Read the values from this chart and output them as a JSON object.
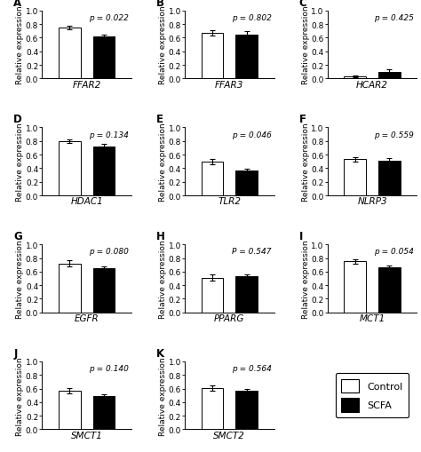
{
  "panels": [
    {
      "label": "A",
      "gene": "FFAR2",
      "pval": "p = 0.022",
      "ctrl_mean": 0.75,
      "ctrl_err": 0.03,
      "scfa_mean": 0.62,
      "scfa_err": 0.025,
      "ylim": [
        0,
        1.0
      ]
    },
    {
      "label": "B",
      "gene": "FFAR3",
      "pval": "p = 0.802",
      "ctrl_mean": 0.67,
      "ctrl_err": 0.038,
      "scfa_mean": 0.65,
      "scfa_err": 0.04,
      "ylim": [
        0,
        1.0
      ]
    },
    {
      "label": "C",
      "gene": "HCAR2",
      "pval": "p = 0.425",
      "ctrl_mean": 0.03,
      "ctrl_err": 0.018,
      "scfa_mean": 0.1,
      "scfa_err": 0.038,
      "ylim": [
        0,
        1.0
      ]
    },
    {
      "label": "D",
      "gene": "HDAC1",
      "pval": "p = 0.134",
      "ctrl_mean": 0.8,
      "ctrl_err": 0.028,
      "scfa_mean": 0.72,
      "scfa_err": 0.04,
      "ylim": [
        0,
        1.0
      ]
    },
    {
      "label": "E",
      "gene": "TLR2",
      "pval": "p = 0.046",
      "ctrl_mean": 0.5,
      "ctrl_err": 0.042,
      "scfa_mean": 0.36,
      "scfa_err": 0.028,
      "ylim": [
        0,
        1.0
      ]
    },
    {
      "label": "F",
      "gene": "NLRP3",
      "pval": "p = 0.559",
      "ctrl_mean": 0.53,
      "ctrl_err": 0.03,
      "scfa_mean": 0.51,
      "scfa_err": 0.038,
      "ylim": [
        0,
        1.0
      ]
    },
    {
      "label": "G",
      "gene": "EGFR",
      "pval": "p = 0.080",
      "ctrl_mean": 0.72,
      "ctrl_err": 0.042,
      "scfa_mean": 0.65,
      "scfa_err": 0.028,
      "ylim": [
        0,
        1.0
      ]
    },
    {
      "label": "H",
      "gene": "PPARG",
      "pval": "P = 0.547",
      "ctrl_mean": 0.51,
      "ctrl_err": 0.048,
      "scfa_mean": 0.53,
      "scfa_err": 0.03,
      "ylim": [
        0,
        1.0
      ]
    },
    {
      "label": "I",
      "gene": "MCT1",
      "pval": "p = 0.054",
      "ctrl_mean": 0.75,
      "ctrl_err": 0.03,
      "scfa_mean": 0.66,
      "scfa_err": 0.025,
      "ylim": [
        0,
        1.0
      ]
    },
    {
      "label": "J",
      "gene": "SMCT1",
      "pval": "p = 0.140",
      "ctrl_mean": 0.57,
      "ctrl_err": 0.038,
      "scfa_mean": 0.49,
      "scfa_err": 0.022,
      "ylim": [
        0,
        1.0
      ]
    },
    {
      "label": "K",
      "gene": "SMCT2",
      "pval": "p = 0.564",
      "ctrl_mean": 0.61,
      "ctrl_err": 0.038,
      "scfa_mean": 0.57,
      "scfa_err": 0.03,
      "ylim": [
        0,
        1.0
      ]
    }
  ],
  "ctrl_color": "white",
  "scfa_color": "black",
  "bar_edgecolor": "black",
  "bar_width": 0.32,
  "tick_fontsize": 6.5,
  "label_fontsize": 6.5,
  "gene_fontsize": 7.5,
  "pval_fontsize": 6.5,
  "panel_label_fontsize": 8.5,
  "ylabel": "Relative expression",
  "yticks": [
    0.0,
    0.2,
    0.4,
    0.6,
    0.8,
    1.0
  ],
  "legend_fontsize": 8
}
